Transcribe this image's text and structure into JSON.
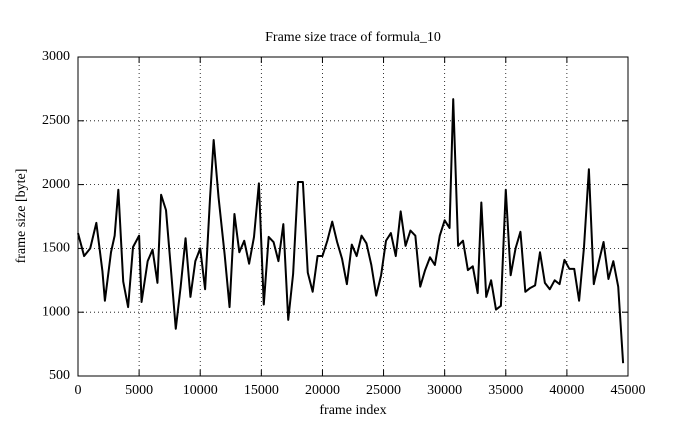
{
  "chart_data": {
    "type": "line",
    "title": "Frame size trace of formula_10",
    "x_label": "frame index",
    "y_label": "frame size [byte]",
    "x": [
      0,
      500,
      1000,
      1500,
      2000,
      2200,
      2700,
      3000,
      3300,
      3700,
      4100,
      4500,
      5000,
      5200,
      5700,
      6100,
      6500,
      6800,
      7200,
      7600,
      8000,
      8400,
      8800,
      9200,
      9600,
      10000,
      10400,
      10800,
      11100,
      11500,
      12000,
      12400,
      12800,
      13200,
      13600,
      14000,
      14400,
      14800,
      15200,
      15600,
      16000,
      16400,
      16800,
      17200,
      17600,
      18000,
      18400,
      18800,
      19200,
      19600,
      20000,
      20400,
      20800,
      21200,
      21600,
      22000,
      22400,
      22800,
      23200,
      23600,
      24000,
      24400,
      24800,
      25200,
      25600,
      26000,
      26400,
      26800,
      27200,
      27600,
      28000,
      28400,
      28800,
      29200,
      29600,
      30000,
      30400,
      30700,
      31100,
      31500,
      31900,
      32300,
      32700,
      33000,
      33400,
      33800,
      34200,
      34600,
      35000,
      35400,
      35800,
      36200,
      36600,
      37000,
      37400,
      37800,
      38200,
      38600,
      39000,
      39400,
      39800,
      40200,
      40600,
      41000,
      41400,
      41800,
      42200,
      42600,
      43000,
      43400,
      43800,
      44200,
      44600
    ],
    "series": [
      {
        "color": "#000000",
        "values": [
          1620,
          1440,
          1500,
          1700,
          1320,
          1090,
          1470,
          1600,
          1960,
          1240,
          1040,
          1510,
          1600,
          1080,
          1400,
          1490,
          1230,
          1920,
          1800,
          1340,
          870,
          1200,
          1580,
          1120,
          1400,
          1500,
          1180,
          1890,
          2350,
          1900,
          1450,
          1040,
          1770,
          1470,
          1560,
          1380,
          1590,
          2010,
          1060,
          1590,
          1550,
          1400,
          1690,
          940,
          1300,
          2020,
          2020,
          1310,
          1160,
          1440,
          1440,
          1560,
          1710,
          1550,
          1420,
          1220,
          1530,
          1440,
          1600,
          1540,
          1370,
          1130,
          1290,
          1560,
          1620,
          1440,
          1790,
          1520,
          1640,
          1600,
          1200,
          1330,
          1430,
          1370,
          1600,
          1720,
          1660,
          2670,
          1520,
          1560,
          1330,
          1360,
          1150,
          1860,
          1120,
          1250,
          1020,
          1050,
          1960,
          1290,
          1500,
          1630,
          1160,
          1190,
          1210,
          1470,
          1230,
          1180,
          1250,
          1220,
          1410,
          1340,
          1340,
          1090,
          1510,
          2120,
          1220,
          1390,
          1550,
          1260,
          1400,
          1200,
          600
        ]
      }
    ],
    "xlim": [
      0,
      45000
    ],
    "xticks": [
      0,
      5000,
      10000,
      15000,
      20000,
      25000,
      30000,
      35000,
      40000,
      45000
    ],
    "ylim": [
      500,
      3000
    ],
    "yticks": [
      500,
      1000,
      1500,
      2000,
      2500,
      3000
    ],
    "grid": true
  }
}
